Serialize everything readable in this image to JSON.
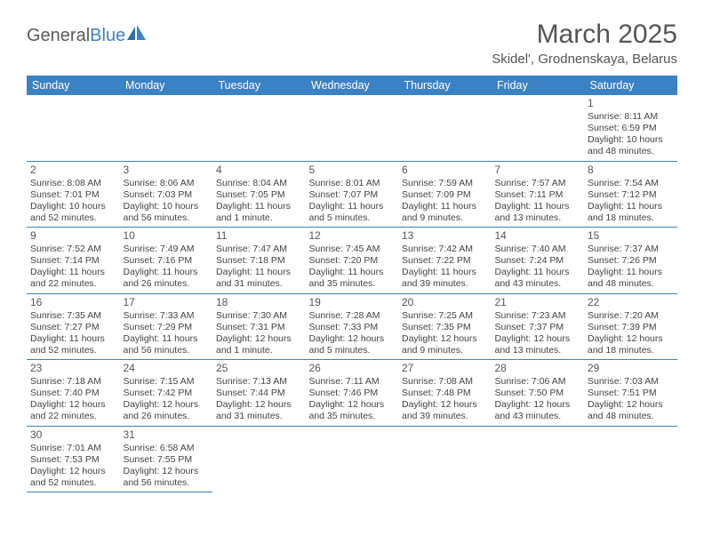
{
  "brand": {
    "part1": "General",
    "part2": "Blue"
  },
  "title": "March 2025",
  "location": "Skidel', Grodnenskaya, Belarus",
  "day_headers": [
    "Sunday",
    "Monday",
    "Tuesday",
    "Wednesday",
    "Thursday",
    "Friday",
    "Saturday"
  ],
  "colors": {
    "header_bg": "#3b82c4",
    "header_text": "#ffffff",
    "text": "#444444",
    "title_text": "#555555"
  },
  "weeks": [
    [
      null,
      null,
      null,
      null,
      null,
      null,
      {
        "n": "1",
        "sunrise": "Sunrise: 8:11 AM",
        "sunset": "Sunset: 6:59 PM",
        "day1": "Daylight: 10 hours",
        "day2": "and 48 minutes."
      }
    ],
    [
      {
        "n": "2",
        "sunrise": "Sunrise: 8:08 AM",
        "sunset": "Sunset: 7:01 PM",
        "day1": "Daylight: 10 hours",
        "day2": "and 52 minutes."
      },
      {
        "n": "3",
        "sunrise": "Sunrise: 8:06 AM",
        "sunset": "Sunset: 7:03 PM",
        "day1": "Daylight: 10 hours",
        "day2": "and 56 minutes."
      },
      {
        "n": "4",
        "sunrise": "Sunrise: 8:04 AM",
        "sunset": "Sunset: 7:05 PM",
        "day1": "Daylight: 11 hours",
        "day2": "and 1 minute."
      },
      {
        "n": "5",
        "sunrise": "Sunrise: 8:01 AM",
        "sunset": "Sunset: 7:07 PM",
        "day1": "Daylight: 11 hours",
        "day2": "and 5 minutes."
      },
      {
        "n": "6",
        "sunrise": "Sunrise: 7:59 AM",
        "sunset": "Sunset: 7:09 PM",
        "day1": "Daylight: 11 hours",
        "day2": "and 9 minutes."
      },
      {
        "n": "7",
        "sunrise": "Sunrise: 7:57 AM",
        "sunset": "Sunset: 7:11 PM",
        "day1": "Daylight: 11 hours",
        "day2": "and 13 minutes."
      },
      {
        "n": "8",
        "sunrise": "Sunrise: 7:54 AM",
        "sunset": "Sunset: 7:12 PM",
        "day1": "Daylight: 11 hours",
        "day2": "and 18 minutes."
      }
    ],
    [
      {
        "n": "9",
        "sunrise": "Sunrise: 7:52 AM",
        "sunset": "Sunset: 7:14 PM",
        "day1": "Daylight: 11 hours",
        "day2": "and 22 minutes."
      },
      {
        "n": "10",
        "sunrise": "Sunrise: 7:49 AM",
        "sunset": "Sunset: 7:16 PM",
        "day1": "Daylight: 11 hours",
        "day2": "and 26 minutes."
      },
      {
        "n": "11",
        "sunrise": "Sunrise: 7:47 AM",
        "sunset": "Sunset: 7:18 PM",
        "day1": "Daylight: 11 hours",
        "day2": "and 31 minutes."
      },
      {
        "n": "12",
        "sunrise": "Sunrise: 7:45 AM",
        "sunset": "Sunset: 7:20 PM",
        "day1": "Daylight: 11 hours",
        "day2": "and 35 minutes."
      },
      {
        "n": "13",
        "sunrise": "Sunrise: 7:42 AM",
        "sunset": "Sunset: 7:22 PM",
        "day1": "Daylight: 11 hours",
        "day2": "and 39 minutes."
      },
      {
        "n": "14",
        "sunrise": "Sunrise: 7:40 AM",
        "sunset": "Sunset: 7:24 PM",
        "day1": "Daylight: 11 hours",
        "day2": "and 43 minutes."
      },
      {
        "n": "15",
        "sunrise": "Sunrise: 7:37 AM",
        "sunset": "Sunset: 7:26 PM",
        "day1": "Daylight: 11 hours",
        "day2": "and 48 minutes."
      }
    ],
    [
      {
        "n": "16",
        "sunrise": "Sunrise: 7:35 AM",
        "sunset": "Sunset: 7:27 PM",
        "day1": "Daylight: 11 hours",
        "day2": "and 52 minutes."
      },
      {
        "n": "17",
        "sunrise": "Sunrise: 7:33 AM",
        "sunset": "Sunset: 7:29 PM",
        "day1": "Daylight: 11 hours",
        "day2": "and 56 minutes."
      },
      {
        "n": "18",
        "sunrise": "Sunrise: 7:30 AM",
        "sunset": "Sunset: 7:31 PM",
        "day1": "Daylight: 12 hours",
        "day2": "and 1 minute."
      },
      {
        "n": "19",
        "sunrise": "Sunrise: 7:28 AM",
        "sunset": "Sunset: 7:33 PM",
        "day1": "Daylight: 12 hours",
        "day2": "and 5 minutes."
      },
      {
        "n": "20",
        "sunrise": "Sunrise: 7:25 AM",
        "sunset": "Sunset: 7:35 PM",
        "day1": "Daylight: 12 hours",
        "day2": "and 9 minutes."
      },
      {
        "n": "21",
        "sunrise": "Sunrise: 7:23 AM",
        "sunset": "Sunset: 7:37 PM",
        "day1": "Daylight: 12 hours",
        "day2": "and 13 minutes."
      },
      {
        "n": "22",
        "sunrise": "Sunrise: 7:20 AM",
        "sunset": "Sunset: 7:39 PM",
        "day1": "Daylight: 12 hours",
        "day2": "and 18 minutes."
      }
    ],
    [
      {
        "n": "23",
        "sunrise": "Sunrise: 7:18 AM",
        "sunset": "Sunset: 7:40 PM",
        "day1": "Daylight: 12 hours",
        "day2": "and 22 minutes."
      },
      {
        "n": "24",
        "sunrise": "Sunrise: 7:15 AM",
        "sunset": "Sunset: 7:42 PM",
        "day1": "Daylight: 12 hours",
        "day2": "and 26 minutes."
      },
      {
        "n": "25",
        "sunrise": "Sunrise: 7:13 AM",
        "sunset": "Sunset: 7:44 PM",
        "day1": "Daylight: 12 hours",
        "day2": "and 31 minutes."
      },
      {
        "n": "26",
        "sunrise": "Sunrise: 7:11 AM",
        "sunset": "Sunset: 7:46 PM",
        "day1": "Daylight: 12 hours",
        "day2": "and 35 minutes."
      },
      {
        "n": "27",
        "sunrise": "Sunrise: 7:08 AM",
        "sunset": "Sunset: 7:48 PM",
        "day1": "Daylight: 12 hours",
        "day2": "and 39 minutes."
      },
      {
        "n": "28",
        "sunrise": "Sunrise: 7:06 AM",
        "sunset": "Sunset: 7:50 PM",
        "day1": "Daylight: 12 hours",
        "day2": "and 43 minutes."
      },
      {
        "n": "29",
        "sunrise": "Sunrise: 7:03 AM",
        "sunset": "Sunset: 7:51 PM",
        "day1": "Daylight: 12 hours",
        "day2": "and 48 minutes."
      }
    ],
    [
      {
        "n": "30",
        "sunrise": "Sunrise: 7:01 AM",
        "sunset": "Sunset: 7:53 PM",
        "day1": "Daylight: 12 hours",
        "day2": "and 52 minutes."
      },
      {
        "n": "31",
        "sunrise": "Sunrise: 6:58 AM",
        "sunset": "Sunset: 7:55 PM",
        "day1": "Daylight: 12 hours",
        "day2": "and 56 minutes."
      },
      null,
      null,
      null,
      null,
      null
    ]
  ]
}
